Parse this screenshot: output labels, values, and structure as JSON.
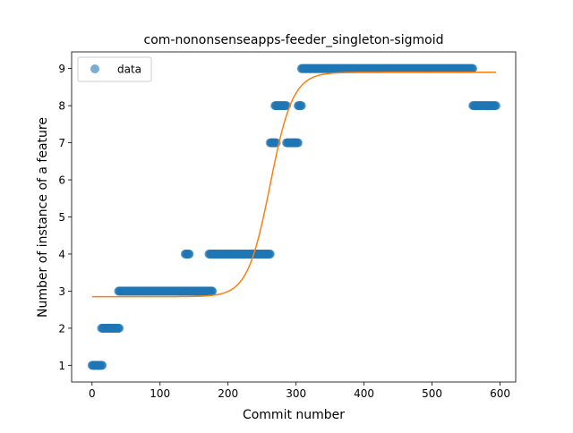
{
  "chart_data": {
    "type": "scatter",
    "title": "com-nononsenseapps-feeder_singleton-sigmoid",
    "xlabel": "Commit number",
    "ylabel": "Number of instance of a feature",
    "xlim": [
      -30,
      623
    ],
    "ylim": [
      0.55,
      9.45
    ],
    "xticks": [
      0,
      100,
      200,
      300,
      400,
      500,
      600
    ],
    "yticks": [
      1,
      2,
      3,
      4,
      5,
      6,
      7,
      8,
      9
    ],
    "legend": {
      "position": "top-left",
      "entries": [
        "data"
      ]
    },
    "grid": false,
    "colors": {
      "data": "#1f77b4",
      "fit": "#ff7f0e"
    },
    "series": [
      {
        "name": "data",
        "kind": "scatter",
        "segments": [
          {
            "x_start": 0,
            "x_end": 15,
            "y": 1
          },
          {
            "x_start": 14,
            "x_end": 40,
            "y": 2
          },
          {
            "x_start": 39,
            "x_end": 177,
            "y": 3
          },
          {
            "x_start": 137,
            "x_end": 143,
            "y": 4
          },
          {
            "x_start": 172,
            "x_end": 262,
            "y": 4
          },
          {
            "x_start": 262,
            "x_end": 271,
            "y": 7
          },
          {
            "x_start": 269,
            "x_end": 286,
            "y": 8
          },
          {
            "x_start": 286,
            "x_end": 303,
            "y": 7
          },
          {
            "x_start": 303,
            "x_end": 308,
            "y": 8
          },
          {
            "x_start": 308,
            "x_end": 560,
            "y": 9
          },
          {
            "x_start": 560,
            "x_end": 594,
            "y": 8
          }
        ]
      },
      {
        "kind": "line",
        "function": "sigmoid",
        "params": {
          "low": 2.85,
          "high": 8.9,
          "x0": 262,
          "k": 0.06
        },
        "x_range": [
          0,
          594
        ]
      }
    ]
  }
}
